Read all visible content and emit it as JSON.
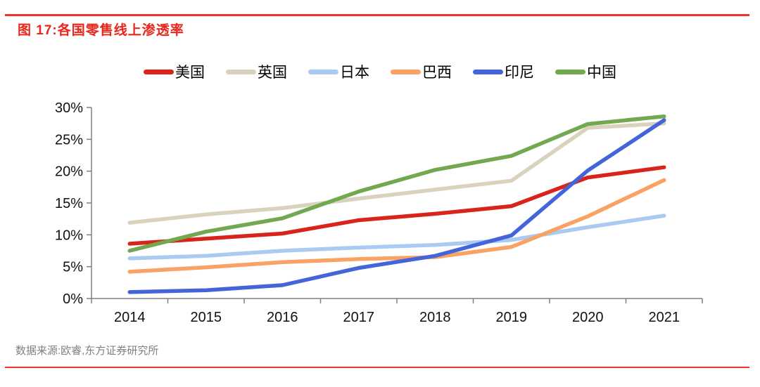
{
  "page": {
    "title": "图 17:各国零售线上渗透率",
    "source": "数据来源:欧睿,东方证券研究所",
    "accent_red": "#e6271c",
    "rule_red": "#ee352a",
    "source_text_color": "#7f7f7f",
    "axis_line_color": "#808080"
  },
  "chart_data": {
    "type": "line",
    "title": "各国零售线上渗透率",
    "categories": [
      "2014",
      "2015",
      "2016",
      "2017",
      "2018",
      "2019",
      "2020",
      "2021"
    ],
    "series": [
      {
        "name": "美国",
        "id": "usa",
        "color": "#d9241b",
        "values": [
          8.6,
          9.4,
          10.2,
          12.3,
          13.3,
          14.5,
          19.0,
          20.6
        ]
      },
      {
        "name": "英国",
        "id": "uk",
        "color": "#d9d2bd",
        "values": [
          11.9,
          13.2,
          14.2,
          15.7,
          17.1,
          18.5,
          26.8,
          27.5
        ]
      },
      {
        "name": "日本",
        "id": "japan",
        "color": "#a9cbf1",
        "values": [
          6.3,
          6.7,
          7.5,
          8.0,
          8.4,
          9.2,
          11.2,
          13.0
        ]
      },
      {
        "name": "巴西",
        "id": "brazil",
        "color": "#f9a263",
        "values": [
          4.2,
          4.9,
          5.7,
          6.2,
          6.5,
          8.1,
          12.9,
          18.6
        ]
      },
      {
        "name": "印尼",
        "id": "indonesia",
        "color": "#4365d9",
        "values": [
          1.0,
          1.3,
          2.1,
          4.8,
          6.7,
          9.9,
          20.1,
          28.0
        ]
      },
      {
        "name": "中国",
        "id": "china",
        "color": "#71a850",
        "values": [
          7.5,
          10.5,
          12.6,
          16.8,
          20.2,
          22.4,
          27.4,
          28.6
        ]
      }
    ],
    "unit": "%",
    "ylim": [
      0,
      30
    ],
    "ytick_values": [
      0,
      5,
      10,
      15,
      20,
      25,
      30
    ],
    "ytick_labels": [
      "0%",
      "5%",
      "10%",
      "15%",
      "20%",
      "25%",
      "30%"
    ],
    "xlabel": "",
    "ylabel": "",
    "grid": false,
    "legend_position": "top"
  }
}
